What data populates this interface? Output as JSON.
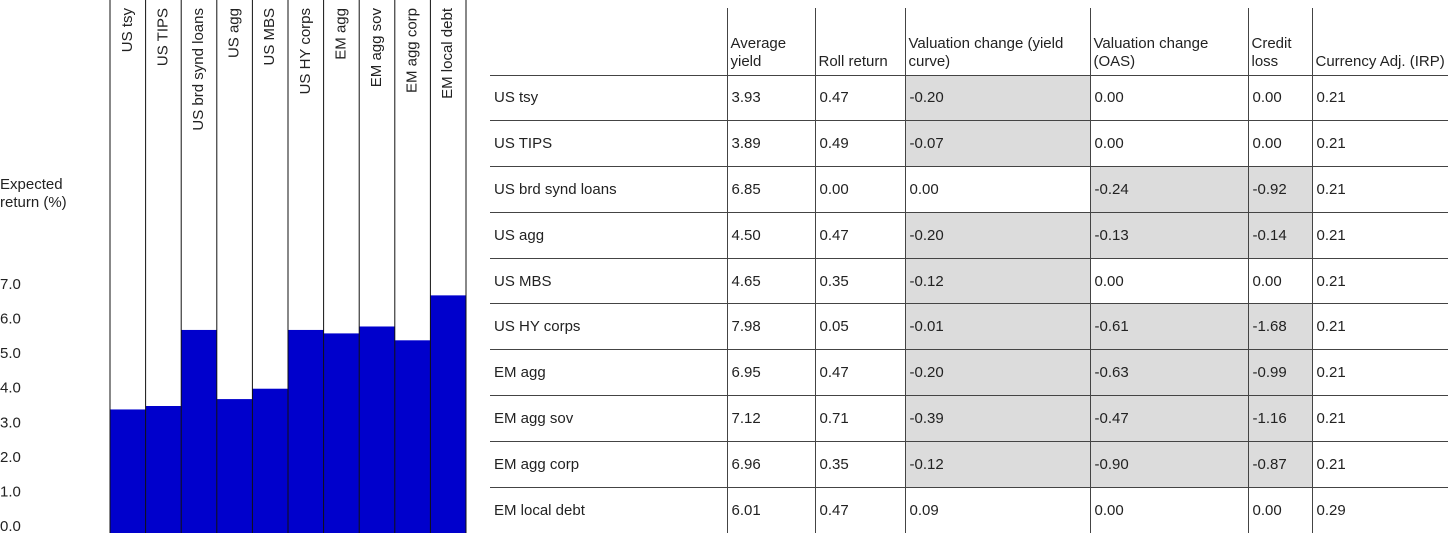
{
  "chart_data": {
    "type": "bar",
    "y_label": "Expected return (%)",
    "categories": [
      "US tsy",
      "US TIPS",
      "US brd synd loans",
      "US agg",
      "US MBS",
      "US HY corps",
      "EM agg",
      "EM agg sov",
      "EM agg corp",
      "EM local debt"
    ],
    "values": [
      3.4,
      3.5,
      5.7,
      3.7,
      4.0,
      5.7,
      5.6,
      5.8,
      5.4,
      6.7
    ],
    "color": "#0000cc",
    "ylim": [
      0,
      7
    ],
    "yticks": [
      {
        "value": 0,
        "label": "0.0"
      },
      {
        "value": 1,
        "label": "1.0"
      },
      {
        "value": 2,
        "label": "2.0"
      },
      {
        "value": 3,
        "label": "3.0"
      },
      {
        "value": 4,
        "label": "4.0"
      },
      {
        "value": 5,
        "label": "5.0"
      },
      {
        "value": 6,
        "label": "6.0"
      },
      {
        "value": 7,
        "label": "7.0"
      }
    ]
  },
  "table": {
    "columns": [
      "Average yield",
      "Roll return",
      "Valuation change (yield curve)",
      "Valuation change (OAS)",
      "Credit loss",
      "Currency Adj. (IRP)"
    ],
    "rows": [
      [
        "US tsy",
        "3.93",
        "0.47",
        "-0.20",
        "0.00",
        "0.00",
        "0.21"
      ],
      [
        "US TIPS",
        "3.89",
        "0.49",
        "-0.07",
        "0.00",
        "0.00",
        "0.21"
      ],
      [
        "US brd synd loans",
        "6.85",
        "0.00",
        "0.00",
        "-0.24",
        "-0.92",
        "0.21"
      ],
      [
        "US agg",
        "4.50",
        "0.47",
        "-0.20",
        "-0.13",
        "-0.14",
        "0.21"
      ],
      [
        "US MBS",
        "4.65",
        "0.35",
        "-0.12",
        "0.00",
        "0.00",
        "0.21"
      ],
      [
        "US HY corps",
        "7.98",
        "0.05",
        "-0.01",
        "-0.61",
        "-1.68",
        "0.21"
      ],
      [
        "EM agg",
        "6.95",
        "0.47",
        "-0.20",
        "-0.63",
        "-0.99",
        "0.21"
      ],
      [
        "EM agg sov",
        "7.12",
        "0.71",
        "-0.39",
        "-0.47",
        "-1.16",
        "0.21"
      ],
      [
        "EM agg corp",
        "6.96",
        "0.35",
        "-0.12",
        "-0.90",
        "-0.87",
        "0.21"
      ],
      [
        "EM local debt",
        "6.01",
        "0.47",
        "0.09",
        "0.00",
        "0.00",
        "0.29"
      ]
    ]
  }
}
